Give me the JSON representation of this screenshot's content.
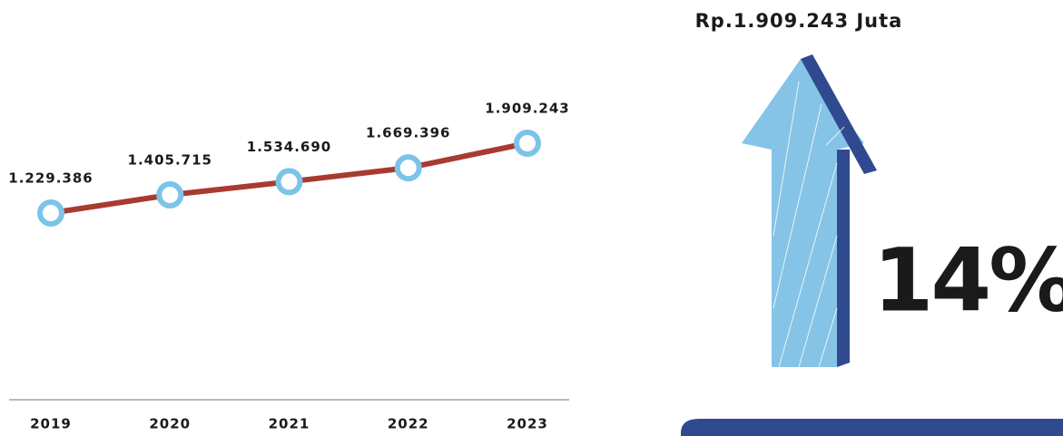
{
  "chart_data": {
    "type": "line",
    "categories": [
      "2019",
      "2020",
      "2021",
      "2022",
      "2023"
    ],
    "values": [
      1229386,
      1405715,
      1534690,
      1669396,
      1909243
    ],
    "value_labels": [
      "1.229.386",
      "1.405.715",
      "1.534.690",
      "1.669.396",
      "1.909.243"
    ],
    "color": "#a83a32",
    "marker_color": "#7cc3e8"
  },
  "headline": "Rp.1.909.243 Juta",
  "growth": "14%"
}
